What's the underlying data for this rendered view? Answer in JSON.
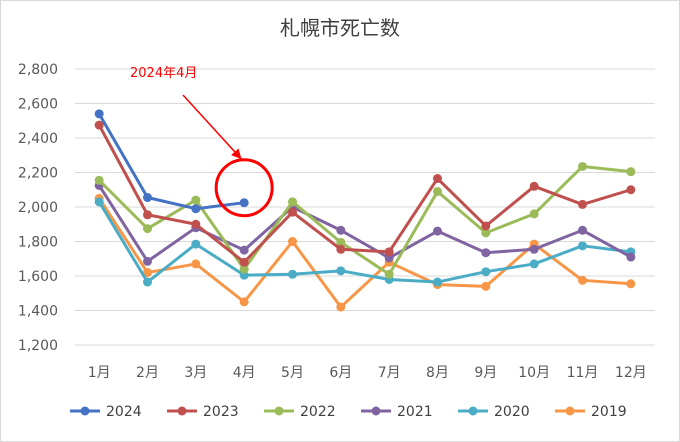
{
  "chart_data": {
    "type": "line",
    "title": "札幌市死亡数",
    "xlabel": "",
    "ylabel": "",
    "categories": [
      "1月",
      "2月",
      "3月",
      "4月",
      "5月",
      "6月",
      "7月",
      "8月",
      "9月",
      "10月",
      "11月",
      "12月"
    ],
    "ylim": [
      1200,
      2800
    ],
    "yticks": [
      1200,
      1400,
      1600,
      1800,
      2000,
      2200,
      2400,
      2600,
      2800
    ],
    "ytick_labels": [
      "1,200",
      "1,400",
      "1,600",
      "1,800",
      "2,000",
      "2,200",
      "2,400",
      "2,600",
      "2,800"
    ],
    "grid": true,
    "legend_position": "bottom",
    "series": [
      {
        "name": "2024",
        "color": "#4472C4",
        "values": [
          2540,
          2055,
          1990,
          2025,
          null,
          null,
          null,
          null,
          null,
          null,
          null,
          null
        ]
      },
      {
        "name": "2023",
        "color": "#C0504D",
        "values": [
          2475,
          1955,
          1900,
          1680,
          1970,
          1755,
          1740,
          2165,
          1890,
          2120,
          2015,
          2100
        ]
      },
      {
        "name": "2022",
        "color": "#9BBB59",
        "values": [
          2155,
          1875,
          2040,
          1640,
          2030,
          1795,
          1610,
          2090,
          1850,
          1960,
          2235,
          2205
        ]
      },
      {
        "name": "2021",
        "color": "#8064A2",
        "values": [
          2125,
          1685,
          1880,
          1750,
          2000,
          1865,
          1705,
          1860,
          1735,
          1755,
          1865,
          1710
        ]
      },
      {
        "name": "2020",
        "color": "#4BACC6",
        "values": [
          2030,
          1565,
          1785,
          1605,
          1610,
          1630,
          1580,
          1565,
          1625,
          1670,
          1775,
          1740
        ]
      },
      {
        "name": "2019",
        "color": "#F79646",
        "values": [
          2050,
          1620,
          1670,
          1450,
          1800,
          1420,
          1680,
          1550,
          1540,
          1785,
          1575,
          1555
        ]
      }
    ],
    "annotation": {
      "text": "2024年4月",
      "color": "#FF0000",
      "target_series": "2024",
      "target_index": 3
    }
  }
}
